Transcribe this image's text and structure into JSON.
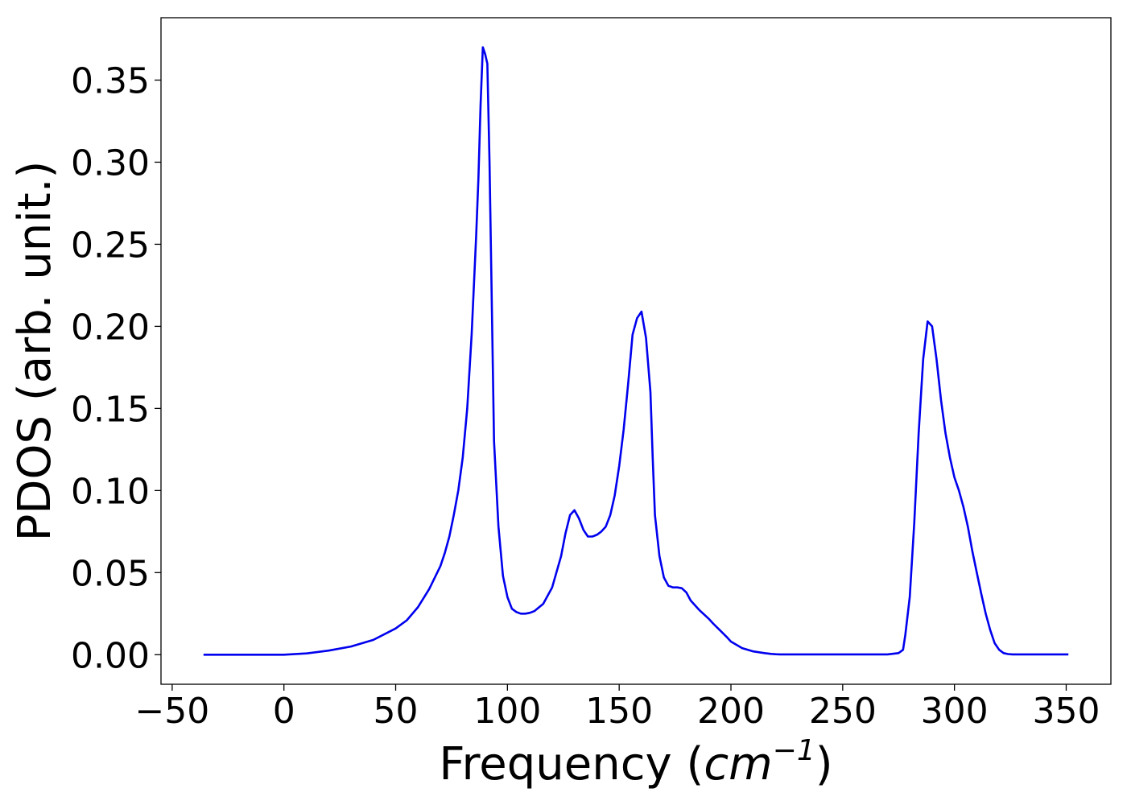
{
  "chart_data": {
    "type": "line",
    "xlabel": "Frequency (",
    "xlabel_unit_base": "cm",
    "xlabel_unit_exp": "−1",
    "xlabel_suffix": ")",
    "ylabel": "PDOS (arb. unit.)",
    "xlim": [
      -55,
      370
    ],
    "ylim": [
      -0.018,
      0.388
    ],
    "x_ticks": [
      -50,
      0,
      50,
      100,
      150,
      200,
      250,
      300,
      350
    ],
    "x_tick_labels": [
      "−50",
      "0",
      "50",
      "100",
      "150",
      "200",
      "250",
      "300",
      "350"
    ],
    "y_ticks": [
      0.0,
      0.05,
      0.1,
      0.15,
      0.2,
      0.25,
      0.3,
      0.35
    ],
    "y_tick_labels": [
      "0.00",
      "0.05",
      "0.10",
      "0.15",
      "0.20",
      "0.25",
      "0.30",
      "0.35"
    ],
    "grid": false,
    "series": [
      {
        "color": "#0000ee",
        "x": [
          -36,
          -20,
          0,
          10,
          20,
          30,
          40,
          50,
          55,
          60,
          65,
          70,
          72,
          74,
          76,
          78,
          80,
          82,
          84,
          86,
          87,
          88,
          89,
          90,
          91,
          92,
          94,
          96,
          98,
          100,
          102,
          104,
          106,
          108,
          110,
          112,
          116,
          120,
          124,
          126,
          128,
          130,
          132,
          134,
          136,
          138,
          140,
          142,
          144,
          146,
          148,
          150,
          152,
          154,
          156,
          158,
          160,
          162,
          164,
          165,
          166,
          168,
          170,
          172,
          174,
          176,
          178,
          180,
          182,
          186,
          190,
          192,
          195,
          198,
          200,
          205,
          210,
          215,
          218,
          220,
          222,
          225,
          230,
          250,
          270,
          275,
          277,
          278,
          280,
          282,
          284,
          286,
          288,
          290,
          292,
          294,
          296,
          298,
          300,
          302,
          304,
          306,
          308,
          310,
          312,
          314,
          316,
          318,
          320,
          322,
          324,
          326,
          330,
          340,
          351
        ],
        "y": [
          0.0,
          0.0,
          0.0,
          0.0008,
          0.0025,
          0.005,
          0.009,
          0.016,
          0.021,
          0.029,
          0.04,
          0.054,
          0.062,
          0.072,
          0.085,
          0.1,
          0.12,
          0.15,
          0.195,
          0.255,
          0.29,
          0.335,
          0.37,
          0.366,
          0.36,
          0.3,
          0.13,
          0.078,
          0.048,
          0.035,
          0.028,
          0.026,
          0.025,
          0.025,
          0.0255,
          0.0265,
          0.031,
          0.041,
          0.06,
          0.074,
          0.085,
          0.088,
          0.083,
          0.076,
          0.072,
          0.072,
          0.073,
          0.075,
          0.078,
          0.085,
          0.097,
          0.115,
          0.137,
          0.165,
          0.195,
          0.205,
          0.209,
          0.193,
          0.16,
          0.12,
          0.085,
          0.06,
          0.047,
          0.042,
          0.041,
          0.041,
          0.0405,
          0.038,
          0.033,
          0.027,
          0.022,
          0.019,
          0.015,
          0.011,
          0.008,
          0.004,
          0.002,
          0.001,
          0.0005,
          0.0003,
          0.0002,
          0.0002,
          0.0002,
          0.0002,
          0.0002,
          0.001,
          0.003,
          0.012,
          0.035,
          0.08,
          0.135,
          0.18,
          0.203,
          0.2,
          0.18,
          0.155,
          0.135,
          0.12,
          0.108,
          0.1,
          0.09,
          0.078,
          0.063,
          0.05,
          0.037,
          0.025,
          0.015,
          0.007,
          0.003,
          0.001,
          0.0004,
          0.0002,
          0.0002,
          0.0002,
          0.0002
        ]
      }
    ]
  }
}
